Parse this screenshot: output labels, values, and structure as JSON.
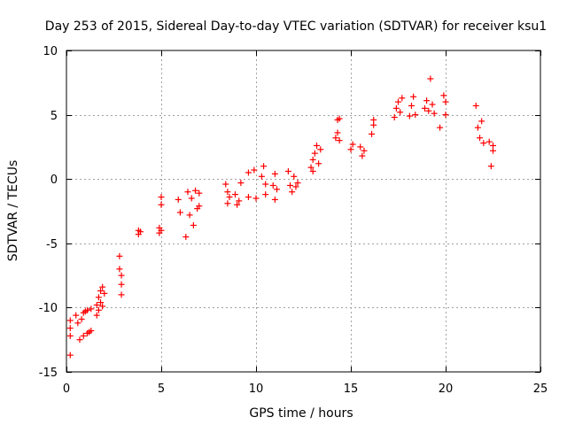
{
  "chart_data": {
    "type": "scatter",
    "title": "Day 253 of 2015, Sidereal Day-to-day VTEC variation (SDTVAR) for receiver ksu1",
    "xlabel": "GPS time / hours",
    "ylabel": "SDTVAR / TECUs",
    "xlim": [
      0,
      25
    ],
    "ylim": [
      -15,
      10
    ],
    "xticks": [
      0,
      5,
      10,
      15,
      20,
      25
    ],
    "yticks": [
      -15,
      -10,
      -5,
      0,
      5,
      10
    ],
    "xtick_labels": [
      "0",
      "5",
      "10",
      "15",
      "20",
      "25"
    ],
    "ytick_labels": [
      "-15",
      "-10",
      "-5",
      "0",
      "5",
      "10"
    ],
    "grid": true,
    "marker": "+",
    "series": [
      {
        "name": "SDTVAR",
        "color": "#ff0000",
        "points": [
          [
            0.2,
            -13.7
          ],
          [
            0.2,
            -11.0
          ],
          [
            0.2,
            -11.6
          ],
          [
            0.2,
            -12.2
          ],
          [
            0.5,
            -10.6
          ],
          [
            0.6,
            -11.2
          ],
          [
            0.7,
            -12.5
          ],
          [
            0.8,
            -10.9
          ],
          [
            0.9,
            -10.4
          ],
          [
            0.9,
            -12.2
          ],
          [
            1.0,
            -10.3
          ],
          [
            1.1,
            -12.0
          ],
          [
            1.1,
            -10.2
          ],
          [
            1.2,
            -11.9
          ],
          [
            1.3,
            -10.1
          ],
          [
            1.3,
            -11.8
          ],
          [
            1.6,
            -10.6
          ],
          [
            1.6,
            -9.8
          ],
          [
            1.7,
            -9.2
          ],
          [
            1.7,
            -10.2
          ],
          [
            1.8,
            -8.7
          ],
          [
            1.8,
            -9.6
          ],
          [
            1.9,
            -8.4
          ],
          [
            1.9,
            -9.9
          ],
          [
            2.0,
            -8.9
          ],
          [
            2.8,
            -6.0
          ],
          [
            2.8,
            -7.0
          ],
          [
            2.9,
            -8.2
          ],
          [
            2.9,
            -9.0
          ],
          [
            2.9,
            -7.5
          ],
          [
            3.8,
            -4.0
          ],
          [
            3.8,
            -4.3
          ],
          [
            3.9,
            -4.1
          ],
          [
            4.9,
            -4.2
          ],
          [
            4.9,
            -3.8
          ],
          [
            5.0,
            -1.4
          ],
          [
            5.0,
            -2.0
          ],
          [
            5.0,
            -4.0
          ],
          [
            5.9,
            -1.6
          ],
          [
            6.0,
            -2.6
          ],
          [
            6.3,
            -4.5
          ],
          [
            6.4,
            -1.0
          ],
          [
            6.5,
            -2.8
          ],
          [
            6.6,
            -1.5
          ],
          [
            6.7,
            -3.6
          ],
          [
            6.8,
            -0.9
          ],
          [
            6.9,
            -2.3
          ],
          [
            7.0,
            -1.1
          ],
          [
            7.0,
            -2.1
          ],
          [
            8.4,
            -0.4
          ],
          [
            8.5,
            -1.0
          ],
          [
            8.5,
            -1.9
          ],
          [
            8.6,
            -1.4
          ],
          [
            8.9,
            -1.2
          ],
          [
            9.0,
            -2.0
          ],
          [
            9.1,
            -1.7
          ],
          [
            9.2,
            -0.3
          ],
          [
            9.6,
            0.5
          ],
          [
            9.6,
            -1.4
          ],
          [
            9.9,
            0.7
          ],
          [
            10.0,
            -1.5
          ],
          [
            10.3,
            0.2
          ],
          [
            10.4,
            1.0
          ],
          [
            10.5,
            -0.4
          ],
          [
            10.5,
            -1.2
          ],
          [
            10.9,
            -0.5
          ],
          [
            11.0,
            -1.6
          ],
          [
            11.0,
            0.4
          ],
          [
            11.1,
            -0.8
          ],
          [
            11.7,
            0.6
          ],
          [
            11.8,
            -0.5
          ],
          [
            11.9,
            -1.0
          ],
          [
            12.0,
            0.2
          ],
          [
            12.1,
            -0.6
          ],
          [
            12.2,
            -0.3
          ],
          [
            12.9,
            0.9
          ],
          [
            13.0,
            1.5
          ],
          [
            13.0,
            0.6
          ],
          [
            13.1,
            2.0
          ],
          [
            13.2,
            2.6
          ],
          [
            13.3,
            1.2
          ],
          [
            13.4,
            2.3
          ],
          [
            14.2,
            3.2
          ],
          [
            14.3,
            4.6
          ],
          [
            14.3,
            3.6
          ],
          [
            14.4,
            3.0
          ],
          [
            14.4,
            4.7
          ],
          [
            15.0,
            2.3
          ],
          [
            15.1,
            2.7
          ],
          [
            15.5,
            2.5
          ],
          [
            15.6,
            1.8
          ],
          [
            15.7,
            2.2
          ],
          [
            16.1,
            3.5
          ],
          [
            16.2,
            4.2
          ],
          [
            16.2,
            4.6
          ],
          [
            17.3,
            4.8
          ],
          [
            17.4,
            5.5
          ],
          [
            17.5,
            6.0
          ],
          [
            17.6,
            5.2
          ],
          [
            17.7,
            6.3
          ],
          [
            18.1,
            4.9
          ],
          [
            18.2,
            5.7
          ],
          [
            18.3,
            6.4
          ],
          [
            18.4,
            5.0
          ],
          [
            18.9,
            5.5
          ],
          [
            19.0,
            6.1
          ],
          [
            19.1,
            5.3
          ],
          [
            19.2,
            7.8
          ],
          [
            19.3,
            5.8
          ],
          [
            19.4,
            5.1
          ],
          [
            19.7,
            4.0
          ],
          [
            19.9,
            6.5
          ],
          [
            20.0,
            5.0
          ],
          [
            20.0,
            6.0
          ],
          [
            21.6,
            5.7
          ],
          [
            21.7,
            4.0
          ],
          [
            21.8,
            3.2
          ],
          [
            21.9,
            4.5
          ],
          [
            22.0,
            2.8
          ],
          [
            22.3,
            2.9
          ],
          [
            22.4,
            1.0
          ],
          [
            22.5,
            2.2
          ],
          [
            22.5,
            2.6
          ]
        ]
      }
    ]
  }
}
